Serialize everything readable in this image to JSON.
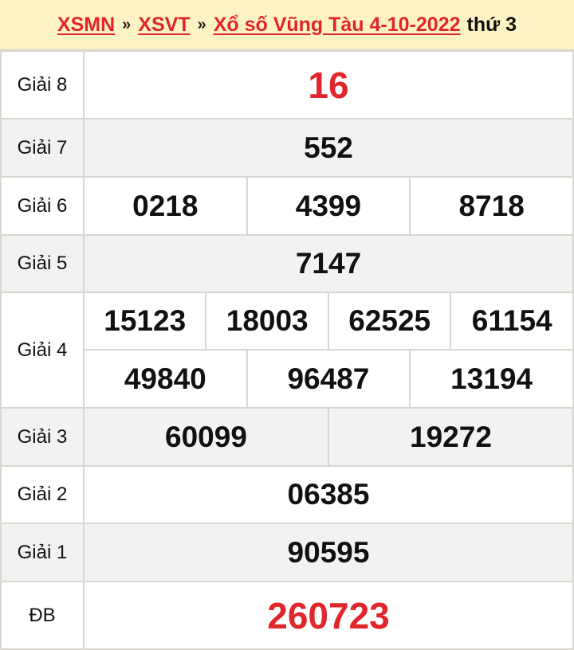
{
  "breadcrumb": {
    "items": [
      "XSMN",
      "XSVT",
      "Xổ số Vũng Tàu 4-10-2022"
    ],
    "separator": "»",
    "suffix": "thứ 3"
  },
  "colors": {
    "accent": "#e0262b",
    "header_bg": "#fdf2c4",
    "alt_row": "#f2f2f2"
  },
  "results": {
    "g8": {
      "label": "Giải 8",
      "values": [
        "16"
      ]
    },
    "g7": {
      "label": "Giải 7",
      "values": [
        "552"
      ]
    },
    "g6": {
      "label": "Giải 6",
      "values": [
        "0218",
        "4399",
        "8718"
      ]
    },
    "g5": {
      "label": "Giải 5",
      "values": [
        "7147"
      ]
    },
    "g4": {
      "label": "Giải 4",
      "values": [
        "15123",
        "18003",
        "62525",
        "61154",
        "49840",
        "96487",
        "13194"
      ]
    },
    "g3": {
      "label": "Giải 3",
      "values": [
        "60099",
        "19272"
      ]
    },
    "g2": {
      "label": "Giải 2",
      "values": [
        "06385"
      ]
    },
    "g1": {
      "label": "Giải 1",
      "values": [
        "90595"
      ]
    },
    "db": {
      "label": "ĐB",
      "values": [
        "260723"
      ]
    }
  }
}
